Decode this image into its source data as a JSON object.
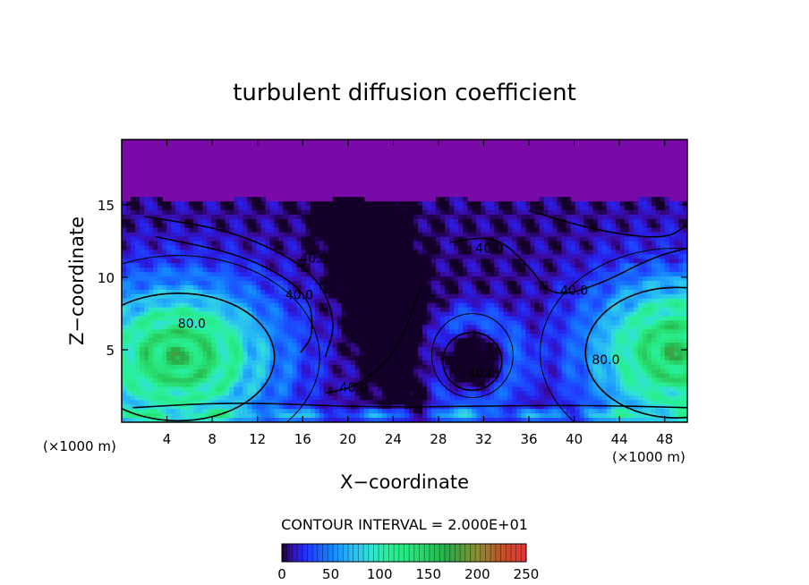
{
  "chart_data": {
    "type": "heatmap",
    "title": "turbulent diffusion coefficient",
    "xlabel": "X−coordinate",
    "ylabel": "Z−coordinate",
    "x_unit_left": "(×1000 m)",
    "x_unit_right": "(×1000 m)",
    "xlim": [
      0,
      50
    ],
    "ylim": [
      0,
      19.5
    ],
    "xticks": [
      4,
      8,
      12,
      16,
      20,
      24,
      28,
      32,
      36,
      40,
      44,
      48
    ],
    "yticks": [
      5,
      10,
      15
    ],
    "contour_interval_label": "CONTOUR INTERVAL = 2.000E+01",
    "contour_labels": [
      {
        "text": "40.0",
        "x": 17.0,
        "z": 11.0
      },
      {
        "text": "40.0",
        "x": 15.7,
        "z": 8.5
      },
      {
        "text": "80.0",
        "x": 6.2,
        "z": 6.5
      },
      {
        "text": "40.0",
        "x": 20.5,
        "z": 2.1
      },
      {
        "text": "40.0",
        "x": 32.5,
        "z": 11.7
      },
      {
        "text": "40.0",
        "x": 40.0,
        "z": 8.8
      },
      {
        "text": "40.0",
        "x": 31.8,
        "z": 3.1
      },
      {
        "text": "80.0",
        "x": 42.8,
        "z": 4.0
      }
    ],
    "colorbar": {
      "range": [
        0,
        250
      ],
      "ticks": [
        0,
        50,
        100,
        150,
        200,
        250
      ],
      "colors": [
        "#1a0033",
        "#2a17c8",
        "#1f5cff",
        "#36b8ff",
        "#2cf08e",
        "#28a850",
        "#8a8a2a",
        "#c04a20",
        "#f03030"
      ]
    },
    "field": {
      "background_value": 5,
      "upper_layer_top": 15.3,
      "features": [
        {
          "name": "left-eddy",
          "cx": 5,
          "cz": 4.5,
          "peak": 140
        },
        {
          "name": "right-eddy",
          "cx": 49,
          "cz": 4.8,
          "peak": 140
        },
        {
          "name": "central-vortex",
          "cx": 31,
          "cz": 4.2,
          "peak": 30
        }
      ]
    }
  }
}
